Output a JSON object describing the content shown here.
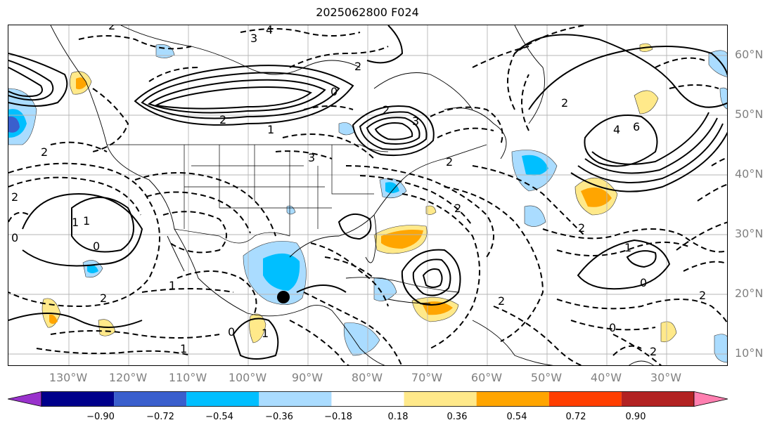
{
  "title": "2025062800 F024",
  "lat_labels": [
    "60°N",
    "50°N",
    "40°N",
    "30°N",
    "20°N",
    "10°N"
  ],
  "lon_labels": [
    "130°W",
    "120°W",
    "110°W",
    "100°W",
    "90°W",
    "80°W",
    "70°W",
    "60°W",
    "50°W",
    "40°W",
    "30°W"
  ],
  "colorbar": {
    "ticks": [
      "−0.90",
      "−0.72",
      "−0.54",
      "−0.36",
      "−0.18",
      "0.18",
      "0.36",
      "0.54",
      "0.72",
      "0.90"
    ],
    "colors": [
      "#9932cc",
      "#00008b",
      "#3a5fcd",
      "#00bfff",
      "#aadcff",
      "#ffffff",
      "#ffe98a",
      "#ffa500",
      "#ff3e00",
      "#b22222",
      "#ff7fb0"
    ]
  },
  "contour_labels": [
    "2",
    "4",
    "3",
    "2",
    "2",
    "0",
    "2",
    "3",
    "2",
    "1",
    "2",
    "2",
    "6",
    "4",
    "3",
    "0",
    "1",
    "2",
    "2",
    "1",
    "0",
    "1",
    "0",
    "1",
    "2",
    "0",
    "2",
    "1",
    "2",
    "2",
    "1",
    "0",
    "2"
  ]
}
